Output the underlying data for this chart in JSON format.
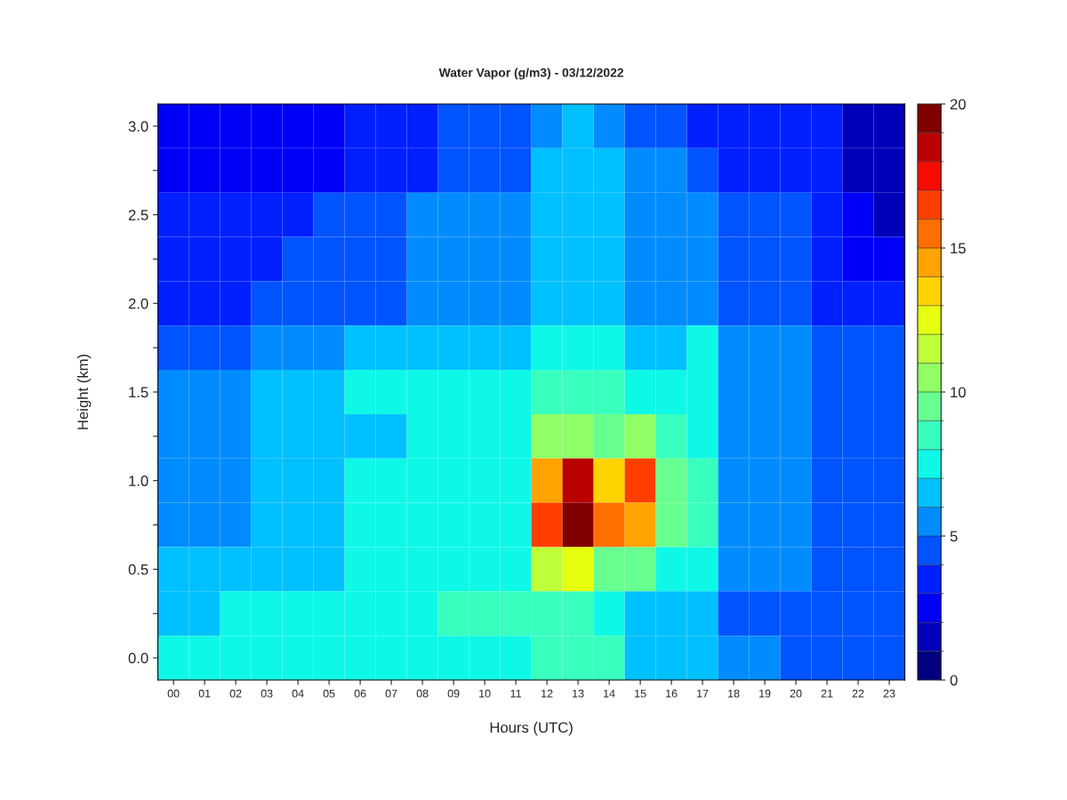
{
  "chart_data": {
    "type": "heatmap",
    "title": "Water Vapor (g/m3) - 03/12/2022",
    "xlabel": "Hours (UTC)",
    "ylabel": "Height (km)",
    "categories": [
      "00",
      "01",
      "02",
      "03",
      "04",
      "05",
      "06",
      "07",
      "08",
      "09",
      "10",
      "11",
      "12",
      "13",
      "14",
      "15",
      "16",
      "17",
      "18",
      "19",
      "20",
      "21",
      "22",
      "23"
    ],
    "y_categories": [
      "3.0",
      null,
      "2.5",
      null,
      "2.0",
      null,
      "1.5",
      null,
      "1.0",
      null,
      "0.5",
      null,
      "0.0"
    ],
    "cells": [
      [
        2,
        2,
        2,
        2,
        2,
        2,
        3,
        3,
        3,
        4,
        4,
        4,
        5,
        6,
        5,
        4,
        4,
        3,
        3,
        3,
        3,
        3,
        1,
        1
      ],
      [
        2,
        2,
        2,
        2,
        2,
        2,
        3,
        3,
        3,
        4,
        4,
        4,
        6,
        6,
        6,
        5,
        5,
        4,
        3,
        3,
        3,
        3,
        1,
        1
      ],
      [
        3,
        3,
        3,
        3,
        3,
        4,
        4,
        4,
        5,
        5,
        5,
        5,
        6,
        6,
        6,
        5,
        5,
        5,
        4,
        4,
        4,
        3,
        2,
        1
      ],
      [
        3,
        3,
        3,
        3,
        4,
        4,
        4,
        4,
        5,
        5,
        5,
        5,
        6,
        6,
        6,
        5,
        5,
        5,
        4,
        4,
        4,
        3,
        2,
        2
      ],
      [
        3,
        3,
        3,
        4,
        4,
        4,
        4,
        4,
        5,
        5,
        5,
        5,
        6,
        6,
        6,
        5,
        5,
        5,
        4,
        4,
        4,
        3,
        3,
        3
      ],
      [
        4,
        4,
        4,
        5,
        5,
        5,
        6,
        6,
        6,
        6,
        6,
        6,
        7,
        7,
        7,
        6,
        6,
        7,
        5,
        5,
        5,
        4,
        4,
        4
      ],
      [
        5,
        5,
        5,
        6,
        6,
        6,
        7,
        7,
        7,
        7,
        7,
        7,
        8,
        8,
        8,
        7,
        7,
        7,
        5,
        5,
        5,
        4,
        4,
        4
      ],
      [
        5,
        5,
        5,
        6,
        6,
        6,
        6,
        6,
        7,
        7,
        7,
        7,
        10,
        10,
        9,
        10,
        8,
        7,
        5,
        5,
        5,
        4,
        4,
        4
      ],
      [
        5,
        5,
        5,
        6,
        6,
        6,
        7,
        7,
        7,
        7,
        7,
        7,
        14,
        18,
        13,
        16,
        9,
        8,
        5,
        5,
        5,
        4,
        4,
        4
      ],
      [
        5,
        5,
        5,
        6,
        6,
        6,
        7,
        7,
        7,
        7,
        7,
        7,
        16,
        19,
        15,
        14,
        9,
        8,
        5,
        5,
        5,
        4,
        4,
        4
      ],
      [
        6,
        6,
        6,
        6,
        6,
        6,
        7,
        7,
        7,
        7,
        7,
        7,
        11,
        12,
        9,
        9,
        7,
        7,
        5,
        5,
        5,
        4,
        4,
        4
      ],
      [
        6,
        6,
        7,
        7,
        7,
        7,
        7,
        7,
        7,
        8,
        8,
        8,
        8,
        8,
        7,
        6,
        6,
        6,
        4,
        4,
        4,
        4,
        4,
        4
      ],
      [
        7,
        7,
        7,
        7,
        7,
        7,
        7,
        7,
        7,
        7,
        7,
        7,
        8,
        8,
        8,
        6,
        6,
        6,
        5,
        5,
        4,
        4,
        4,
        4
      ]
    ],
    "clim": [
      0,
      20
    ],
    "cticks": [
      0,
      5,
      10,
      15,
      20
    ]
  }
}
